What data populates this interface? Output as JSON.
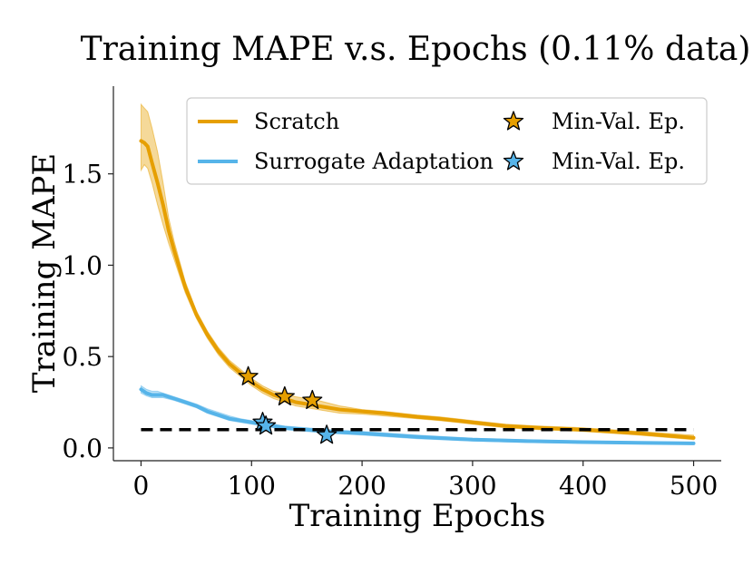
{
  "chart_data": {
    "type": "line",
    "title": "Training MAPE v.s. Epochs (0.11% data)",
    "xlabel": "Training Epochs",
    "ylabel": "Training MAPE",
    "xlim": [
      -25,
      525
    ],
    "ylim": [
      -0.07,
      1.98
    ],
    "xticks": [
      0,
      100,
      200,
      300,
      400,
      500
    ],
    "yticks": [
      0.0,
      0.5,
      1.0,
      1.5
    ],
    "xtick_labels": [
      "0",
      "100",
      "200",
      "300",
      "400",
      "500"
    ],
    "ytick_labels": [
      "0.0",
      "0.5",
      "1.0",
      "1.5"
    ],
    "reference_line": {
      "y": 0.1,
      "style": "dashed",
      "color": "#000000"
    },
    "legend": {
      "position": "top-right",
      "entries": [
        {
          "label": "Scratch",
          "kind": "line",
          "color": "#E69F00"
        },
        {
          "label": "Min-Val. Ep.",
          "kind": "star",
          "color": "#E69F00"
        },
        {
          "label": "Surrogate Adaptation",
          "kind": "line",
          "color": "#56B4E9"
        },
        {
          "label": "Min-Val. Ep.",
          "kind": "star",
          "color": "#56B4E9"
        }
      ]
    },
    "series": [
      {
        "name": "Scratch",
        "color": "#E69F00",
        "x": [
          0,
          3,
          6,
          10,
          15,
          20,
          25,
          30,
          40,
          50,
          60,
          70,
          80,
          90,
          100,
          110,
          120,
          130,
          140,
          150,
          160,
          180,
          200,
          220,
          250,
          270,
          300,
          330,
          360,
          400,
          450,
          500
        ],
        "y": [
          1.68,
          1.67,
          1.65,
          1.56,
          1.45,
          1.33,
          1.19,
          1.08,
          0.88,
          0.73,
          0.62,
          0.53,
          0.46,
          0.41,
          0.36,
          0.32,
          0.29,
          0.27,
          0.25,
          0.24,
          0.23,
          0.21,
          0.2,
          0.19,
          0.17,
          0.16,
          0.14,
          0.12,
          0.11,
          0.1,
          0.08,
          0.055
        ],
        "band_upper": [
          1.88,
          1.86,
          1.84,
          1.75,
          1.62,
          1.45,
          1.26,
          1.13,
          0.91,
          0.75,
          0.64,
          0.55,
          0.48,
          0.43,
          0.38,
          0.34,
          0.31,
          0.3,
          0.28,
          0.27,
          0.26,
          0.23,
          0.21,
          0.2,
          0.18,
          0.17,
          0.15,
          0.13,
          0.12,
          0.11,
          0.09,
          0.07
        ],
        "band_lower": [
          1.52,
          1.55,
          1.53,
          1.45,
          1.33,
          1.22,
          1.12,
          1.03,
          0.85,
          0.71,
          0.6,
          0.51,
          0.44,
          0.39,
          0.34,
          0.3,
          0.27,
          0.25,
          0.23,
          0.22,
          0.21,
          0.19,
          0.185,
          0.175,
          0.16,
          0.15,
          0.13,
          0.11,
          0.1,
          0.09,
          0.07,
          0.045
        ]
      },
      {
        "name": "Surrogate Adaptation",
        "color": "#56B4E9",
        "x": [
          0,
          5,
          10,
          15,
          20,
          30,
          40,
          50,
          60,
          70,
          80,
          90,
          100,
          110,
          120,
          130,
          150,
          170,
          200,
          250,
          300,
          350,
          400,
          450,
          500
        ],
        "y": [
          0.32,
          0.3,
          0.29,
          0.29,
          0.29,
          0.27,
          0.25,
          0.23,
          0.2,
          0.18,
          0.16,
          0.15,
          0.14,
          0.13,
          0.12,
          0.11,
          0.1,
          0.09,
          0.08,
          0.06,
          0.045,
          0.037,
          0.032,
          0.028,
          0.025
        ],
        "band_upper": [
          0.34,
          0.32,
          0.31,
          0.31,
          0.3,
          0.28,
          0.26,
          0.24,
          0.215,
          0.195,
          0.175,
          0.16,
          0.15,
          0.14,
          0.13,
          0.12,
          0.11,
          0.1,
          0.09,
          0.07,
          0.053,
          0.044,
          0.038,
          0.034,
          0.031
        ],
        "band_lower": [
          0.3,
          0.285,
          0.275,
          0.275,
          0.275,
          0.26,
          0.24,
          0.22,
          0.19,
          0.17,
          0.15,
          0.14,
          0.13,
          0.12,
          0.11,
          0.1,
          0.09,
          0.08,
          0.07,
          0.05,
          0.038,
          0.03,
          0.026,
          0.022,
          0.019
        ]
      }
    ],
    "markers": [
      {
        "series": "Scratch",
        "label": "Min-Val. Ep.",
        "x": 97,
        "y": 0.39,
        "color": "#E69F00"
      },
      {
        "series": "Scratch",
        "label": "Min-Val. Ep.",
        "x": 130,
        "y": 0.28,
        "color": "#E69F00"
      },
      {
        "series": "Scratch",
        "label": "Min-Val. Ep.",
        "x": 155,
        "y": 0.26,
        "color": "#E69F00"
      },
      {
        "series": "Surrogate Adaptation",
        "label": "Min-Val. Ep.",
        "x": 110,
        "y": 0.14,
        "color": "#56B4E9"
      },
      {
        "series": "Surrogate Adaptation",
        "label": "Min-Val. Ep.",
        "x": 113,
        "y": 0.12,
        "color": "#56B4E9"
      },
      {
        "series": "Surrogate Adaptation",
        "label": "Min-Val. Ep.",
        "x": 168,
        "y": 0.07,
        "color": "#56B4E9"
      }
    ]
  }
}
